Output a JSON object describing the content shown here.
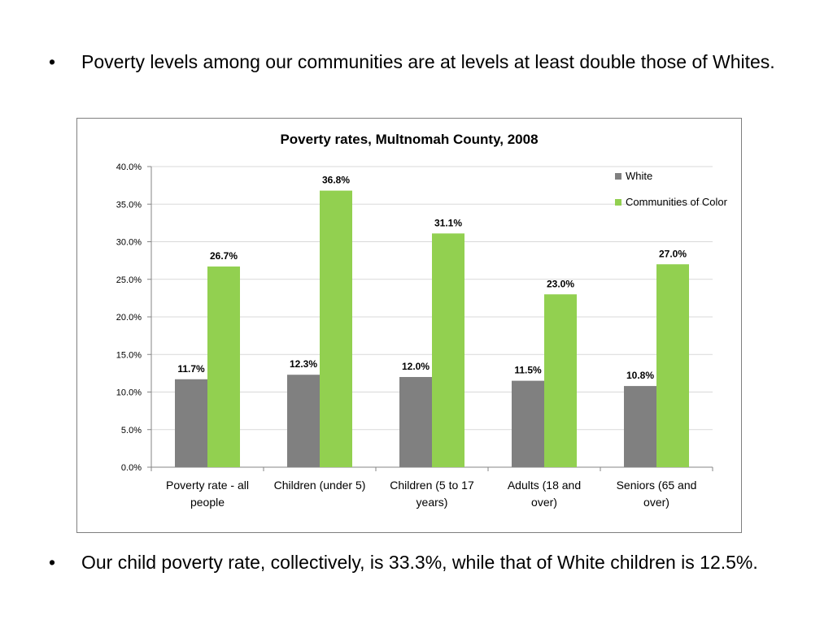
{
  "slide": {
    "bullet_glyph": "•",
    "bullets": [
      "Poverty levels among our communities are at levels at least double those of Whites.",
      "Our child poverty rate, collectively, is 33.3%, while that of White children is 12.5%."
    ]
  },
  "chart_data": {
    "type": "bar",
    "title": "Poverty rates, Multnomah County, 2008",
    "xlabel": "",
    "ylabel": "",
    "categories": [
      "Poverty rate - all people",
      "Children (under 5)",
      "Children (5 to 17 years)",
      "Adults (18 and over)",
      "Seniors (65 and over)"
    ],
    "series": [
      {
        "name": "White",
        "color": "#808080",
        "values": [
          11.7,
          12.3,
          12.0,
          11.5,
          10.8
        ]
      },
      {
        "name": "Communities of Color",
        "color": "#92d050",
        "values": [
          26.7,
          36.8,
          31.1,
          23.0,
          27.0
        ]
      }
    ],
    "ylim": [
      0,
      40
    ],
    "ytick_step": 5,
    "ytick_labels": [
      "0.0%",
      "5.0%",
      "10.0%",
      "15.0%",
      "20.0%",
      "25.0%",
      "30.0%",
      "35.0%",
      "40.0%"
    ],
    "value_suffix": "%",
    "grid": true,
    "legend_position": "top-right"
  }
}
